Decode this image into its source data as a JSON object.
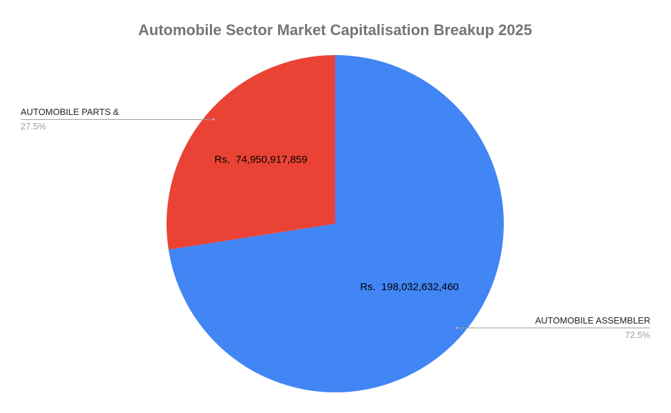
{
  "chart_data": {
    "type": "pie",
    "title": "Automobile Sector Market Capitalisation Breakup 2025",
    "categories": [
      "AUTOMOBILE ASSEMBLER",
      "AUTOMOBILE PARTS &"
    ],
    "values": [
      198032632460,
      74950917859
    ],
    "value_labels": [
      "Rs.  198,032,632,460",
      "Rs.  74,950,917,859"
    ],
    "percent_labels": [
      "72.5%",
      "27.5%"
    ],
    "colors": [
      "#4285f4",
      "#ea4335"
    ]
  }
}
